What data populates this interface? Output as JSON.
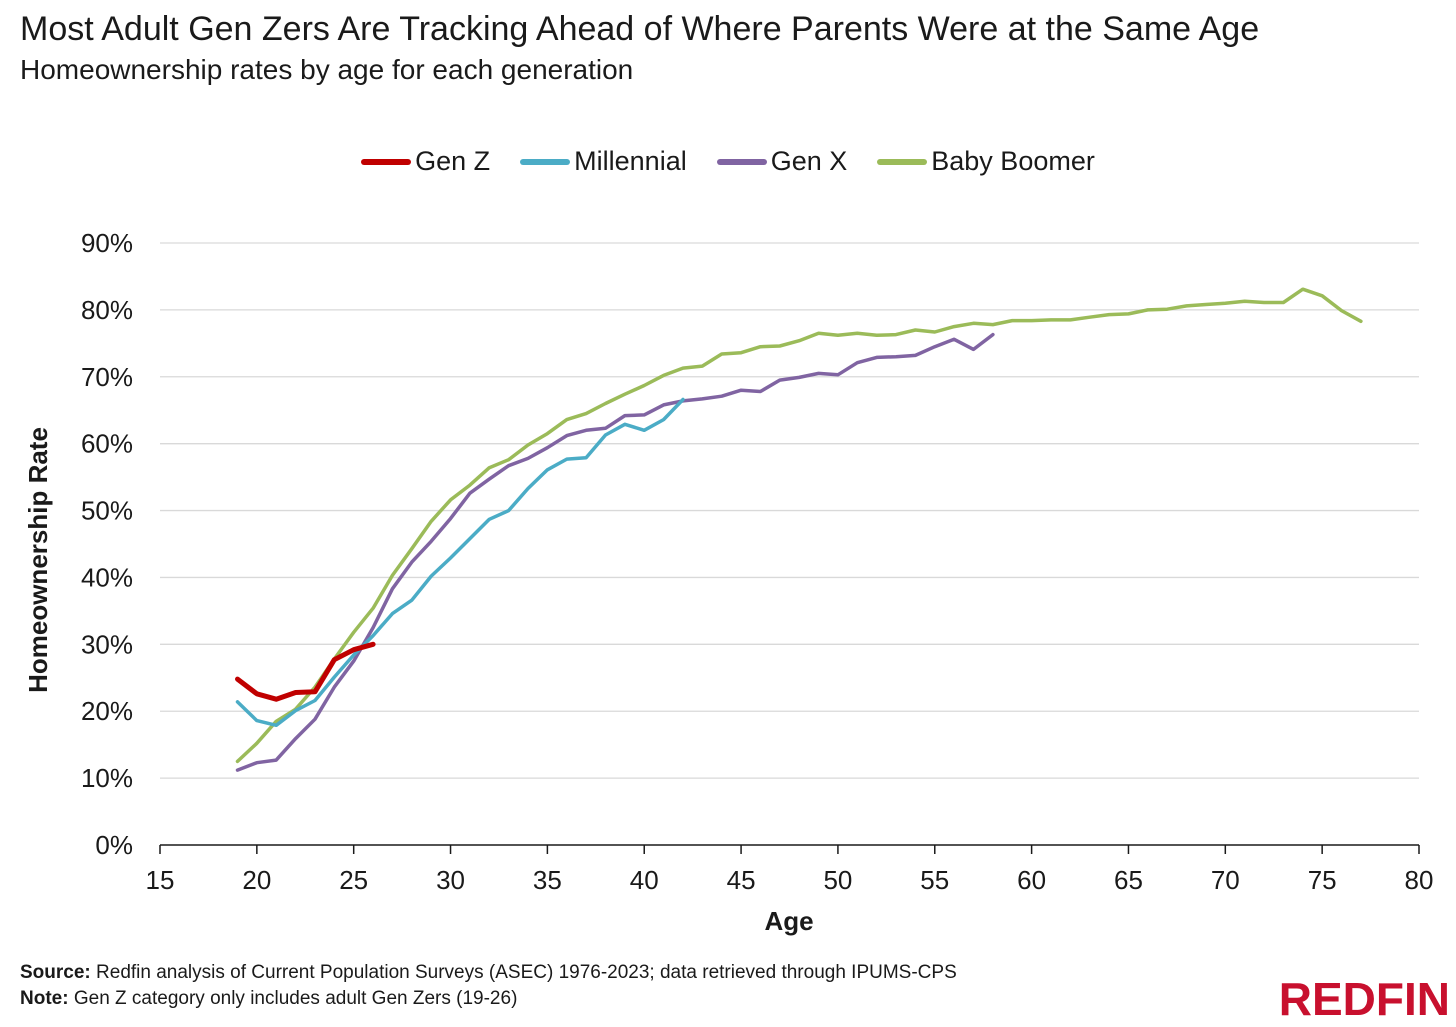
{
  "title": "Most Adult Gen Zers Are Tracking Ahead of Where Parents Were at the Same Age",
  "subtitle": "Homeownership rates by age for each generation",
  "footer": {
    "source_label": "Source:",
    "source_text": "Redfin analysis of Current Population Surveys (ASEC) 1976-2023; data retrieved through IPUMS-CPS",
    "note_label": "Note:",
    "note_text": "Gen Z category only includes adult Gen Zers (19-26)"
  },
  "logo": "REDFIN",
  "colors": {
    "gen_z": "#c00000",
    "millennial": "#4bacc6",
    "gen_x": "#8064a2",
    "baby_boomer": "#9bbb59",
    "grid": "#d9d9d9",
    "axis": "#1a1a1a",
    "brand": "#c8102e"
  },
  "chart_data": {
    "type": "line",
    "xlabel": "Age",
    "ylabel": "Homeownership Rate",
    "xlim": [
      15,
      80
    ],
    "ylim": [
      0,
      90
    ],
    "x_ticks": [
      "15",
      "20",
      "25",
      "30",
      "35",
      "40",
      "45",
      "50",
      "55",
      "60",
      "65",
      "70",
      "75",
      "80"
    ],
    "y_ticks": [
      "0%",
      "10%",
      "20%",
      "30%",
      "40%",
      "50%",
      "60%",
      "70%",
      "80%",
      "90%"
    ],
    "grid": "horizontal",
    "legend_position": "top-center",
    "series": [
      {
        "name": "Gen Z",
        "color_key": "gen_z",
        "x": [
          19,
          20,
          21,
          22,
          23,
          24,
          25,
          26
        ],
        "y": [
          24.8,
          22.6,
          21.8,
          22.8,
          22.9,
          27.7,
          29.2,
          30.0
        ]
      },
      {
        "name": "Millennial",
        "color_key": "millennial",
        "x": [
          19,
          20,
          21,
          22,
          23,
          24,
          25,
          26,
          27,
          28,
          29,
          30,
          31,
          32,
          33,
          34,
          35,
          36,
          37,
          38,
          39,
          40,
          41,
          42
        ],
        "y": [
          21.4,
          18.6,
          17.9,
          20.1,
          21.6,
          25.1,
          28.4,
          31.3,
          34.6,
          36.6,
          40.2,
          42.9,
          45.8,
          48.7,
          50.0,
          53.3,
          56.1,
          57.7,
          57.9,
          61.3,
          62.9,
          62.0,
          63.6,
          66.6
        ]
      },
      {
        "name": "Gen X",
        "color_key": "gen_x",
        "x": [
          19,
          20,
          21,
          22,
          23,
          24,
          25,
          26,
          27,
          28,
          29,
          30,
          31,
          32,
          33,
          34,
          35,
          36,
          37,
          38,
          39,
          40,
          41,
          42,
          43,
          44,
          45,
          46,
          47,
          48,
          49,
          50,
          51,
          52,
          53,
          54,
          55,
          56,
          57,
          58
        ],
        "y": [
          11.2,
          12.3,
          12.7,
          15.9,
          18.8,
          23.6,
          27.5,
          32.5,
          38.3,
          42.3,
          45.4,
          48.8,
          52.6,
          54.7,
          56.7,
          57.8,
          59.4,
          61.2,
          62.0,
          62.3,
          64.2,
          64.3,
          65.8,
          66.4,
          66.7,
          67.1,
          68.0,
          67.8,
          69.5,
          69.9,
          70.5,
          70.3,
          72.1,
          72.9,
          73.0,
          73.2,
          74.5,
          75.6,
          74.1,
          76.3
        ]
      },
      {
        "name": "Baby Boomer",
        "color_key": "baby_boomer",
        "x": [
          19,
          20,
          21,
          22,
          23,
          24,
          25,
          26,
          27,
          28,
          29,
          30,
          31,
          32,
          33,
          34,
          35,
          36,
          37,
          38,
          39,
          40,
          41,
          42,
          43,
          44,
          45,
          46,
          47,
          48,
          49,
          50,
          51,
          52,
          53,
          54,
          55,
          56,
          57,
          58,
          59,
          60,
          61,
          62,
          63,
          64,
          65,
          66,
          67,
          68,
          69,
          70,
          71,
          72,
          73,
          74,
          75,
          76,
          77
        ],
        "y": [
          12.5,
          15.2,
          18.5,
          20.3,
          23.6,
          27.8,
          31.8,
          35.4,
          40.3,
          44.3,
          48.4,
          51.6,
          53.8,
          56.4,
          57.6,
          59.8,
          61.5,
          63.6,
          64.5,
          66.0,
          67.4,
          68.7,
          70.2,
          71.3,
          71.6,
          73.4,
          73.6,
          74.5,
          74.6,
          75.4,
          76.5,
          76.2,
          76.5,
          76.2,
          76.3,
          77.0,
          76.7,
          77.5,
          78.0,
          77.8,
          78.4,
          78.4,
          78.5,
          78.5,
          78.9,
          79.3,
          79.4,
          80.0,
          80.1,
          80.6,
          80.8,
          81.0,
          81.3,
          81.1,
          81.1,
          83.1,
          82.1,
          79.9,
          78.3
        ]
      }
    ]
  }
}
